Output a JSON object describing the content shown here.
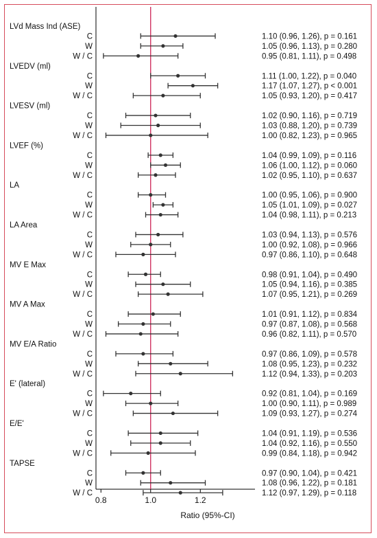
{
  "chart_data": {
    "type": "forest",
    "xlabel": "Ratio (95%-CI)",
    "xlim": [
      0.78,
      1.42
    ],
    "xticks": [
      "0.8",
      "1.0",
      "1.2"
    ],
    "tick_values": [
      0.8,
      1.0,
      1.2
    ],
    "reference_line": 1.0,
    "reference_color": "#cc2255",
    "groups": [
      {
        "title": "LVd Mass Ind (ASE)",
        "rows": [
          {
            "label": "C",
            "est": 1.1,
            "lo": 0.96,
            "hi": 1.26,
            "text": "1.10 (0.96, 1.26), p = 0.161"
          },
          {
            "label": "W",
            "est": 1.05,
            "lo": 0.96,
            "hi": 1.13,
            "text": "1.05 (0.96, 1.13), p = 0.280"
          },
          {
            "label": "W / C",
            "est": 0.95,
            "lo": 0.81,
            "hi": 1.11,
            "text": "0.95 (0.81, 1.11), p = 0.498"
          }
        ]
      },
      {
        "title": "LVEDV (ml)",
        "rows": [
          {
            "label": "C",
            "est": 1.11,
            "lo": 1.0,
            "hi": 1.22,
            "text": "1.11 (1.00, 1.22), p = 0.040"
          },
          {
            "label": "W",
            "est": 1.17,
            "lo": 1.07,
            "hi": 1.27,
            "text": "1.17 (1.07, 1.27), p < 0.001"
          },
          {
            "label": "W / C",
            "est": 1.05,
            "lo": 0.93,
            "hi": 1.2,
            "text": "1.05 (0.93, 1.20), p = 0.417"
          }
        ]
      },
      {
        "title": "LVESV (ml)",
        "rows": [
          {
            "label": "C",
            "est": 1.02,
            "lo": 0.9,
            "hi": 1.16,
            "text": "1.02 (0.90, 1.16), p = 0.719"
          },
          {
            "label": "W",
            "est": 1.03,
            "lo": 0.88,
            "hi": 1.2,
            "text": "1.03 (0.88, 1.20), p = 0.739"
          },
          {
            "label": "W / C",
            "est": 1.0,
            "lo": 0.82,
            "hi": 1.23,
            "text": "1.00 (0.82, 1.23), p = 0.965"
          }
        ]
      },
      {
        "title": "LVEF (%)",
        "rows": [
          {
            "label": "C",
            "est": 1.04,
            "lo": 0.99,
            "hi": 1.09,
            "text": "1.04 (0.99, 1.09), p = 0.116"
          },
          {
            "label": "W",
            "est": 1.06,
            "lo": 1.0,
            "hi": 1.12,
            "text": "1.06 (1.00, 1.12), p = 0.060"
          },
          {
            "label": "W / C",
            "est": 1.02,
            "lo": 0.95,
            "hi": 1.1,
            "text": "1.02 (0.95, 1.10), p = 0.637"
          }
        ]
      },
      {
        "title": "LA",
        "rows": [
          {
            "label": "C",
            "est": 1.0,
            "lo": 0.95,
            "hi": 1.06,
            "text": "1.00 (0.95, 1.06), p = 0.900"
          },
          {
            "label": "W",
            "est": 1.05,
            "lo": 1.01,
            "hi": 1.09,
            "text": "1.05 (1.01, 1.09), p = 0.027"
          },
          {
            "label": "W / C",
            "est": 1.04,
            "lo": 0.98,
            "hi": 1.11,
            "text": "1.04 (0.98, 1.11), p = 0.213"
          }
        ]
      },
      {
        "title": "LA Area",
        "rows": [
          {
            "label": "C",
            "est": 1.03,
            "lo": 0.94,
            "hi": 1.13,
            "text": "1.03 (0.94, 1.13), p = 0.576"
          },
          {
            "label": "W",
            "est": 1.0,
            "lo": 0.92,
            "hi": 1.08,
            "text": "1.00 (0.92, 1.08), p = 0.966"
          },
          {
            "label": "W / C",
            "est": 0.97,
            "lo": 0.86,
            "hi": 1.1,
            "text": "0.97 (0.86, 1.10), p = 0.648"
          }
        ]
      },
      {
        "title": "MV E Max",
        "rows": [
          {
            "label": "C",
            "est": 0.98,
            "lo": 0.91,
            "hi": 1.04,
            "text": "0.98 (0.91, 1.04), p = 0.490"
          },
          {
            "label": "W",
            "est": 1.05,
            "lo": 0.94,
            "hi": 1.16,
            "text": "1.05 (0.94, 1.16), p = 0.385"
          },
          {
            "label": "W / C",
            "est": 1.07,
            "lo": 0.95,
            "hi": 1.21,
            "text": "1.07 (0.95, 1.21), p = 0.269"
          }
        ]
      },
      {
        "title": "MV A Max",
        "rows": [
          {
            "label": "C",
            "est": 1.01,
            "lo": 0.91,
            "hi": 1.12,
            "text": "1.01 (0.91, 1.12), p = 0.834"
          },
          {
            "label": "W",
            "est": 0.97,
            "lo": 0.87,
            "hi": 1.08,
            "text": "0.97 (0.87, 1.08), p = 0.568"
          },
          {
            "label": "W / C",
            "est": 0.96,
            "lo": 0.82,
            "hi": 1.11,
            "text": "0.96 (0.82, 1.11), p = 0.570"
          }
        ]
      },
      {
        "title": "MV E/A Ratio",
        "rows": [
          {
            "label": "C",
            "est": 0.97,
            "lo": 0.86,
            "hi": 1.09,
            "text": "0.97 (0.86, 1.09), p = 0.578"
          },
          {
            "label": "W",
            "est": 1.08,
            "lo": 0.95,
            "hi": 1.23,
            "text": "1.08 (0.95, 1.23), p = 0.232"
          },
          {
            "label": "W / C",
            "est": 1.12,
            "lo": 0.94,
            "hi": 1.33,
            "text": "1.12 (0.94, 1.33), p = 0.203"
          }
        ]
      },
      {
        "title": "E' (lateral)",
        "rows": [
          {
            "label": "C",
            "est": 0.92,
            "lo": 0.81,
            "hi": 1.04,
            "text": "0.92 (0.81, 1.04), p = 0.169"
          },
          {
            "label": "W",
            "est": 1.0,
            "lo": 0.9,
            "hi": 1.11,
            "text": "1.00 (0.90, 1.11), p = 0.989"
          },
          {
            "label": "W / C",
            "est": 1.09,
            "lo": 0.93,
            "hi": 1.27,
            "text": "1.09 (0.93, 1.27), p = 0.274"
          }
        ]
      },
      {
        "title": "E/E'",
        "rows": [
          {
            "label": "C",
            "est": 1.04,
            "lo": 0.91,
            "hi": 1.19,
            "text": "1.04 (0.91, 1.19), p = 0.536"
          },
          {
            "label": "W",
            "est": 1.04,
            "lo": 0.92,
            "hi": 1.16,
            "text": "1.04 (0.92, 1.16), p = 0.550"
          },
          {
            "label": "W / C",
            "est": 0.99,
            "lo": 0.84,
            "hi": 1.18,
            "text": "0.99 (0.84, 1.18), p = 0.942"
          }
        ]
      },
      {
        "title": "TAPSE",
        "rows": [
          {
            "label": "C",
            "est": 0.97,
            "lo": 0.9,
            "hi": 1.04,
            "text": "0.97 (0.90, 1.04), p = 0.421"
          },
          {
            "label": "W",
            "est": 1.08,
            "lo": 0.96,
            "hi": 1.22,
            "text": "1.08 (0.96, 1.22), p = 0.181"
          },
          {
            "label": "W / C",
            "est": 1.12,
            "lo": 0.97,
            "hi": 1.29,
            "text": "1.12 (0.97, 1.29), p = 0.118"
          }
        ]
      }
    ]
  }
}
